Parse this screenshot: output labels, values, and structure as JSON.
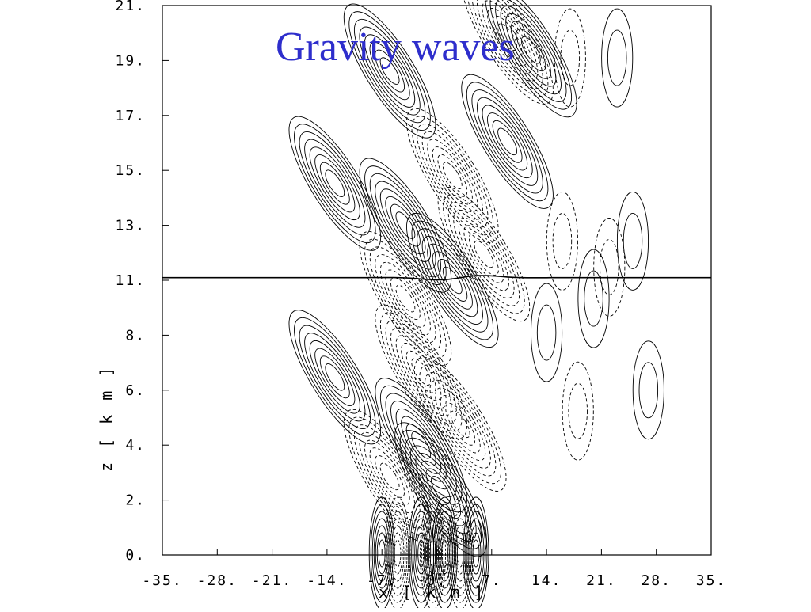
{
  "slide": {
    "title": "Gravity waves"
  },
  "chart_data": {
    "type": "contour",
    "title": "",
    "xlabel": "x   [ k m ]",
    "ylabel": "z   [ k m ]",
    "x_ticks": [
      "-35.",
      "-28.",
      "-21.",
      "-14.",
      "-7.",
      "0.",
      "7.",
      "14.",
      "21.",
      "28.",
      "35."
    ],
    "y_ticks": [
      "0.",
      "2.",
      "4.",
      "6.",
      "8.",
      "11.",
      "13.",
      "15.",
      "17.",
      "19.",
      "21."
    ],
    "xlim": [
      -35,
      35
    ],
    "ylim": [
      0,
      21
    ],
    "grid": false,
    "tropopause_height_km": 10.6,
    "contour_styles": {
      "positive": "solid",
      "negative": "dashed"
    },
    "cells": [
      {
        "x": -13,
        "z": 14.2,
        "sign": 1
      },
      {
        "x": -4,
        "z": 12.6,
        "sign": 1
      },
      {
        "x": 2,
        "z": 10.5,
        "sign": 1
      },
      {
        "x": 9,
        "z": 15.8,
        "sign": 1
      },
      {
        "x": 12,
        "z": 19.3,
        "sign": 1
      },
      {
        "x": -13,
        "z": 6.8,
        "sign": 1
      },
      {
        "x": -2,
        "z": 4.2,
        "sign": 1
      },
      {
        "x": 0.5,
        "z": 2.5,
        "sign": 1
      },
      {
        "x": -6,
        "z": 18.5,
        "sign": 1
      },
      {
        "x": -4,
        "z": 9.8,
        "sign": -1
      },
      {
        "x": 2,
        "z": 14.5,
        "sign": -1
      },
      {
        "x": 6,
        "z": 11.5,
        "sign": -1
      },
      {
        "x": 9,
        "z": 19.8,
        "sign": -1
      },
      {
        "x": -2,
        "z": 7.0,
        "sign": -1
      },
      {
        "x": 3,
        "z": 5.0,
        "sign": -1
      },
      {
        "x": -6,
        "z": 3.0,
        "sign": -1
      },
      {
        "x": 17,
        "z": 19.0,
        "sign": -1
      },
      {
        "x": 14,
        "z": 8.5,
        "sign": 1
      },
      {
        "x": 20,
        "z": 9.8,
        "sign": 1
      },
      {
        "x": 23,
        "z": 19.0,
        "sign": 1
      },
      {
        "x": 25,
        "z": 12.0,
        "sign": 1
      },
      {
        "x": 27,
        "z": 6.3,
        "sign": 1
      },
      {
        "x": 16,
        "z": 12.0,
        "sign": -1
      },
      {
        "x": 22,
        "z": 11.0,
        "sign": -1
      },
      {
        "x": 18,
        "z": 5.5,
        "sign": -1
      }
    ],
    "near_surface_lobes": [
      {
        "x": -7,
        "sign": 1
      },
      {
        "x": -5,
        "sign": -1
      },
      {
        "x": -2,
        "sign": 1
      },
      {
        "x": -0.5,
        "sign": -1
      },
      {
        "x": 1,
        "sign": 1
      },
      {
        "x": 3,
        "sign": -1
      },
      {
        "x": 5,
        "sign": 1
      }
    ]
  }
}
